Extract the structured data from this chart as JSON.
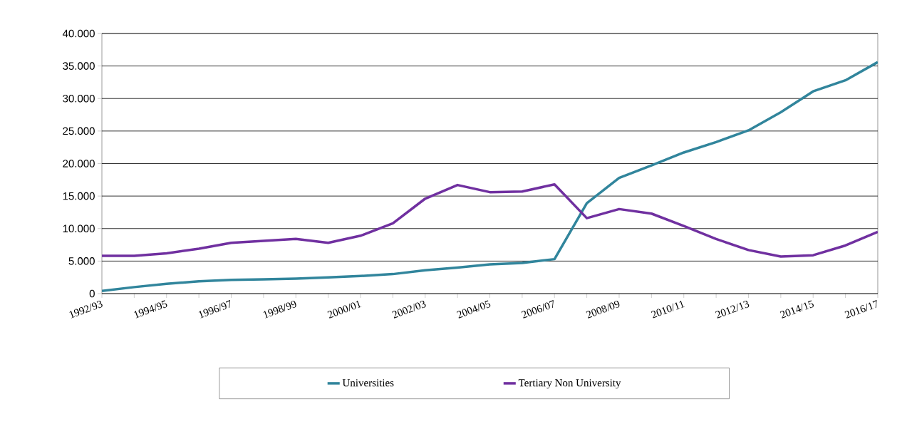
{
  "chart_data": {
    "type": "line",
    "categories": [
      "1992/93",
      null,
      "1994/95",
      null,
      "1996/97",
      null,
      "1998/99",
      null,
      "2000/01",
      null,
      "2002/03",
      null,
      "2004/05",
      null,
      "2006/07",
      null,
      "2008/09",
      null,
      "2010/11",
      null,
      "2012/13",
      null,
      "2014/15",
      null,
      "2016/17"
    ],
    "series": [
      {
        "name": "Universities",
        "color": "#31859c",
        "values": [
          400,
          1000,
          1500,
          1900,
          2100,
          2200,
          2300,
          2500,
          2700,
          3000,
          3600,
          4000,
          4500,
          4700,
          5300,
          13900,
          17800,
          19700,
          21700,
          23300,
          25100,
          27900,
          31100,
          32800,
          35600
        ]
      },
      {
        "name": "Tertiary Non University",
        "color": "#7030a0",
        "values": [
          5800,
          5800,
          6200,
          6900,
          7800,
          8100,
          8400,
          7800,
          8900,
          10800,
          14600,
          16700,
          15600,
          15700,
          16800,
          11600,
          13000,
          12300,
          10400,
          8400,
          6700,
          5700,
          5900,
          7400,
          9500
        ]
      }
    ],
    "ylim": [
      0,
      40000
    ],
    "yticks": [
      0,
      {
        "value": 5000,
        "label": "5.000"
      },
      {
        "value": 10000,
        "label": "10.000"
      },
      {
        "value": 15000,
        "label": "15.000"
      },
      {
        "value": 20000,
        "label": "20.000"
      },
      {
        "value": 25000,
        "label": "25.000"
      },
      {
        "value": 30000,
        "label": "30.000"
      },
      {
        "value": 35000,
        "label": "35.000"
      },
      {
        "value": 40000,
        "label": "40.000"
      }
    ],
    "grid": "y",
    "legend": "bottom",
    "marker": "none",
    "line_style": "solid"
  }
}
